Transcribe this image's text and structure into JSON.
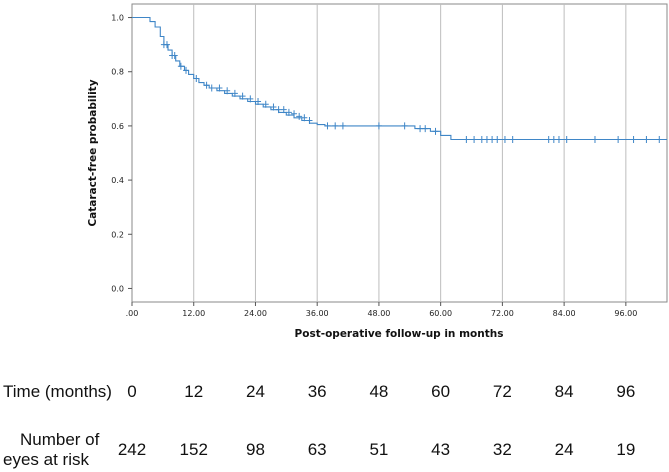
{
  "chart_data": {
    "type": "line",
    "title": "",
    "xlabel": "Post-operative follow-up in months",
    "ylabel": "Cataract-free probability",
    "xlim": [
      0,
      104
    ],
    "ylim": [
      -0.05,
      1.05
    ],
    "x_ticks": [
      0,
      12,
      24,
      36,
      48,
      60,
      72,
      84,
      96
    ],
    "x_tick_labels": [
      ".00",
      "12.00",
      "24.00",
      "36.00",
      "48.00",
      "60.00",
      "72.00",
      "84.00",
      "96.00"
    ],
    "y_ticks": [
      0.0,
      0.2,
      0.4,
      0.6,
      0.8,
      1.0
    ],
    "y_tick_labels": [
      "0.0",
      "0.2",
      "0.4",
      "0.6",
      "0.8",
      "1.0"
    ],
    "grid": "vertical",
    "line_color": "#3f86c7",
    "series": [
      {
        "x": [
          0,
          3.5,
          3.5,
          4.5,
          4.5,
          5.5,
          5.5,
          6.2,
          6.2,
          7,
          7,
          7.8,
          7.8,
          8.5,
          8.5,
          9.3,
          9.3,
          10.2,
          10.2,
          11,
          11,
          12,
          12,
          13,
          13,
          14,
          14,
          15,
          15,
          16.5,
          16.5,
          18,
          18,
          19.5,
          19.5,
          21,
          21,
          22.5,
          22.5,
          24,
          24,
          25.5,
          25.5,
          27,
          27,
          28.5,
          28.5,
          30,
          30,
          31.5,
          31.5,
          33,
          33,
          34.5,
          34.5,
          36,
          36,
          37.5,
          37.5,
          55,
          55,
          58,
          58,
          60,
          60,
          62,
          62,
          104
        ],
        "y": [
          1.0,
          1.0,
          0.985,
          0.985,
          0.965,
          0.965,
          0.93,
          0.93,
          0.9,
          0.9,
          0.88,
          0.88,
          0.86,
          0.86,
          0.84,
          0.84,
          0.82,
          0.82,
          0.805,
          0.805,
          0.79,
          0.79,
          0.775,
          0.775,
          0.76,
          0.76,
          0.75,
          0.75,
          0.74,
          0.74,
          0.73,
          0.73,
          0.72,
          0.72,
          0.71,
          0.71,
          0.7,
          0.7,
          0.69,
          0.69,
          0.68,
          0.68,
          0.67,
          0.67,
          0.66,
          0.66,
          0.65,
          0.65,
          0.64,
          0.64,
          0.63,
          0.63,
          0.62,
          0.62,
          0.61,
          0.61,
          0.605,
          0.605,
          0.6,
          0.6,
          0.59,
          0.59,
          0.58,
          0.58,
          0.565,
          0.565,
          0.55,
          0.55
        ]
      }
    ],
    "censor_marks": [
      {
        "x": 6.2,
        "y": 0.9
      },
      {
        "x": 6.8,
        "y": 0.9
      },
      {
        "x": 7.8,
        "y": 0.86
      },
      {
        "x": 8.3,
        "y": 0.86
      },
      {
        "x": 9.5,
        "y": 0.82
      },
      {
        "x": 10.5,
        "y": 0.805
      },
      {
        "x": 12.5,
        "y": 0.775
      },
      {
        "x": 14.5,
        "y": 0.75
      },
      {
        "x": 15.5,
        "y": 0.74
      },
      {
        "x": 17,
        "y": 0.74
      },
      {
        "x": 18.5,
        "y": 0.73
      },
      {
        "x": 20,
        "y": 0.72
      },
      {
        "x": 21.5,
        "y": 0.71
      },
      {
        "x": 23,
        "y": 0.7
      },
      {
        "x": 24.5,
        "y": 0.69
      },
      {
        "x": 26,
        "y": 0.68
      },
      {
        "x": 27.5,
        "y": 0.67
      },
      {
        "x": 28.5,
        "y": 0.66
      },
      {
        "x": 29.5,
        "y": 0.66
      },
      {
        "x": 30.5,
        "y": 0.65
      },
      {
        "x": 31.5,
        "y": 0.645
      },
      {
        "x": 32.5,
        "y": 0.635
      },
      {
        "x": 33.5,
        "y": 0.63
      },
      {
        "x": 34.5,
        "y": 0.62
      },
      {
        "x": 38,
        "y": 0.6
      },
      {
        "x": 39.5,
        "y": 0.6
      },
      {
        "x": 41,
        "y": 0.6
      },
      {
        "x": 48,
        "y": 0.6
      },
      {
        "x": 53,
        "y": 0.6
      },
      {
        "x": 56,
        "y": 0.59
      },
      {
        "x": 57,
        "y": 0.59
      },
      {
        "x": 59,
        "y": 0.58
      },
      {
        "x": 65,
        "y": 0.55
      },
      {
        "x": 66.5,
        "y": 0.55
      },
      {
        "x": 68,
        "y": 0.55
      },
      {
        "x": 69,
        "y": 0.55
      },
      {
        "x": 70,
        "y": 0.55
      },
      {
        "x": 71,
        "y": 0.55
      },
      {
        "x": 72.5,
        "y": 0.55
      },
      {
        "x": 74,
        "y": 0.55
      },
      {
        "x": 81,
        "y": 0.55
      },
      {
        "x": 82,
        "y": 0.55
      },
      {
        "x": 83,
        "y": 0.55
      },
      {
        "x": 84.5,
        "y": 0.55
      },
      {
        "x": 90,
        "y": 0.55
      },
      {
        "x": 94.5,
        "y": 0.55
      },
      {
        "x": 97.5,
        "y": 0.55
      },
      {
        "x": 100,
        "y": 0.55
      },
      {
        "x": 102.5,
        "y": 0.55
      }
    ]
  },
  "risk_table": {
    "time_header": "Time (months)",
    "risk_header_line1": "Number of",
    "risk_header_line2": "eyes at risk",
    "times": [
      "0",
      "12",
      "24",
      "36",
      "48",
      "60",
      "72",
      "84",
      "96"
    ],
    "at_risk": [
      "242",
      "152",
      "98",
      "63",
      "51",
      "43",
      "32",
      "24",
      "19"
    ]
  }
}
